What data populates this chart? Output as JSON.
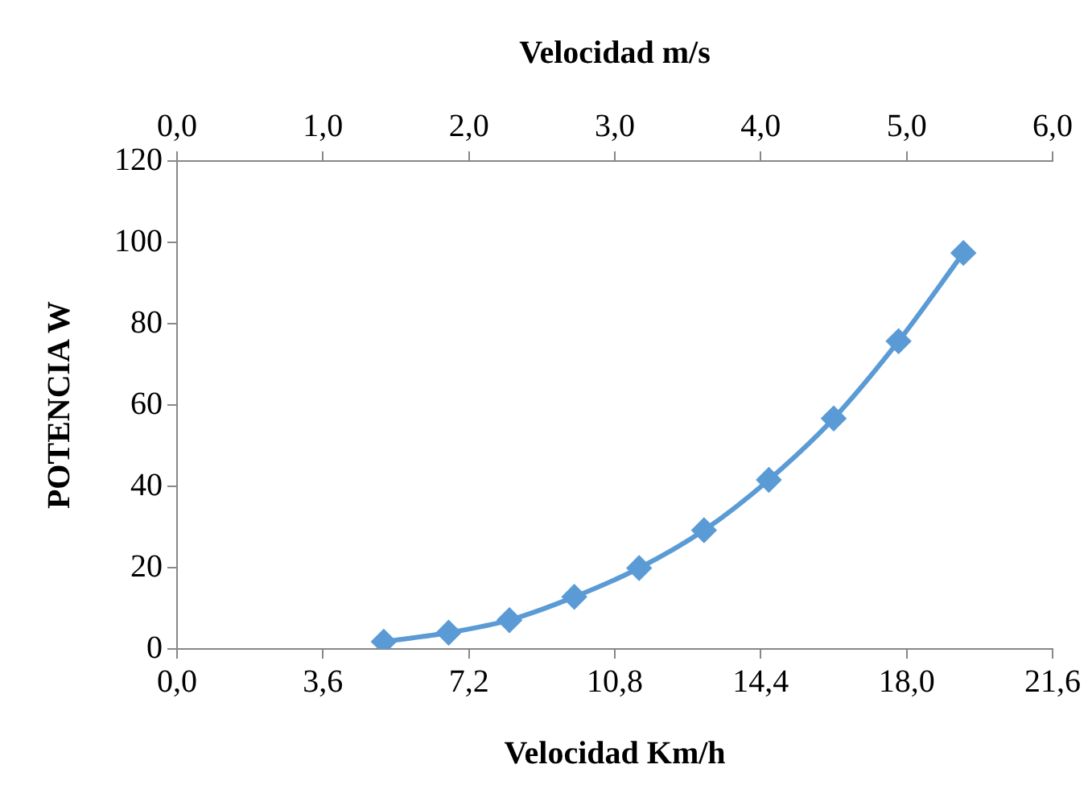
{
  "chart_data": {
    "type": "line",
    "xlabel": "Velocidad Km/h",
    "x2label": "Velocidad m/s",
    "ylabel": "POTENCIA W",
    "x": [
      5.1,
      6.7,
      8.2,
      9.8,
      11.4,
      13.0,
      14.6,
      16.2,
      17.8,
      19.4
    ],
    "series": [
      {
        "color": "#5b9bd5",
        "values": [
          1.8,
          4.0,
          7.1,
          12.8,
          19.9,
          29.2,
          41.6,
          56.7,
          75.7,
          97.4
        ]
      }
    ],
    "xlim": [
      0,
      21.6
    ],
    "xticks": [
      {
        "value": 0,
        "label": "0,0"
      },
      {
        "value": 3.6,
        "label": "3,6"
      },
      {
        "value": 7.2,
        "label": "7,2"
      },
      {
        "value": 10.8,
        "label": "10,8"
      },
      {
        "value": 14.4,
        "label": "14,4"
      },
      {
        "value": 18,
        "label": "18,0"
      },
      {
        "value": 21.6,
        "label": "21,6"
      }
    ],
    "x2lim": [
      0,
      6
    ],
    "x2ticks": [
      {
        "value": 0,
        "label": "0,0"
      },
      {
        "value": 1,
        "label": "1,0"
      },
      {
        "value": 2,
        "label": "2,0"
      },
      {
        "value": 3,
        "label": "3,0"
      },
      {
        "value": 4,
        "label": "4,0"
      },
      {
        "value": 5,
        "label": "5,0"
      },
      {
        "value": 6,
        "label": "6,0"
      }
    ],
    "ylim": [
      0,
      120
    ],
    "yticks": [
      0,
      20,
      40,
      60,
      80,
      100,
      120
    ],
    "marker": "diamond",
    "line_style": "solid",
    "grid": false,
    "legend": false
  }
}
